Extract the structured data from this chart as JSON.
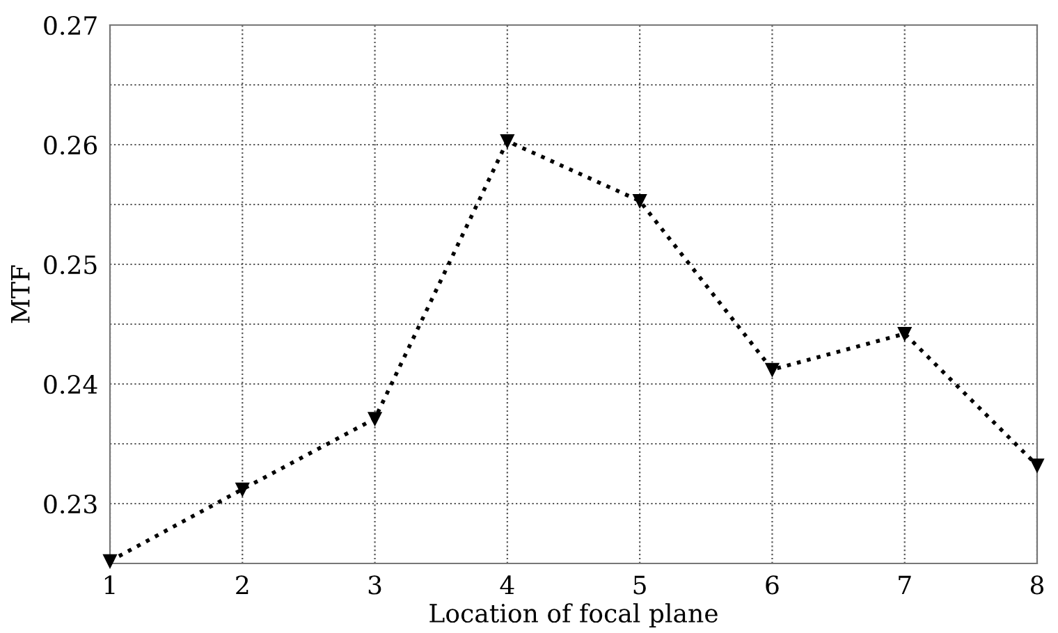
{
  "chart_data": {
    "type": "line",
    "xlabel": "Location of focal plane",
    "ylabel": "MTF",
    "x": [
      1,
      2,
      3,
      4,
      5,
      6,
      7,
      8
    ],
    "series": [
      {
        "color": "#000000",
        "values": [
          0.2252,
          0.2312,
          0.2371,
          0.2603,
          0.2553,
          0.2412,
          0.2442,
          0.2332
        ]
      }
    ],
    "xlim": [
      1,
      8
    ],
    "xticks": [
      1,
      2,
      3,
      4,
      5,
      6,
      7,
      8
    ],
    "ylim": [
      0.225,
      0.27
    ],
    "yticks": [
      0.23,
      {
        "value": 0.235,
        "label": null
      },
      0.24,
      {
        "value": 0.245,
        "label": null
      },
      0.25,
      {
        "value": 0.255,
        "label": null
      },
      0.26,
      {
        "value": 0.265,
        "label": null
      },
      0.27
    ],
    "grid": true,
    "marker": "triangle",
    "line_style": "dotted",
    "legend": false
  }
}
